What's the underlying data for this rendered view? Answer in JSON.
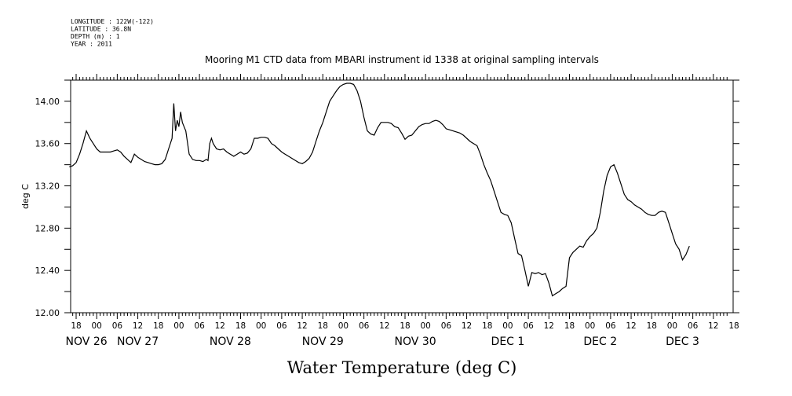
{
  "header": {
    "meta_lines": [
      "LONGITUDE : 122W(-122)",
      "LATITUDE : 36.8N",
      "DEPTH (m) : 1",
      "YEAR : 2011"
    ]
  },
  "chart_data": {
    "type": "line",
    "title": "Mooring M1 CTD data from MBARI instrument id 1338 at original sampling intervals",
    "xlabel": "Water Temperature (deg C)",
    "ylabel": "deg C",
    "ylim": [
      12.0,
      14.2
    ],
    "yticks": [
      12.0,
      12.4,
      12.8,
      13.2,
      13.6,
      14.0
    ],
    "ytick_labels": [
      "12.00",
      "12.40",
      "12.80",
      "13.20",
      "13.60",
      "14.00"
    ],
    "x_unit": "hours since 2011-11-25 16:00",
    "xlim": [
      0,
      192
    ],
    "hour_ticks": [
      {
        "t": 2,
        "label": "18"
      },
      {
        "t": 8,
        "label": "00"
      },
      {
        "t": 14,
        "label": "06"
      },
      {
        "t": 20,
        "label": "12"
      },
      {
        "t": 26,
        "label": "18"
      },
      {
        "t": 32,
        "label": "00"
      },
      {
        "t": 38,
        "label": "06"
      },
      {
        "t": 44,
        "label": "12"
      },
      {
        "t": 50,
        "label": "18"
      },
      {
        "t": 56,
        "label": "00"
      },
      {
        "t": 62,
        "label": "06"
      },
      {
        "t": 68,
        "label": "12"
      },
      {
        "t": 74,
        "label": "18"
      },
      {
        "t": 80,
        "label": "00"
      },
      {
        "t": 86,
        "label": "06"
      },
      {
        "t": 92,
        "label": "12"
      },
      {
        "t": 98,
        "label": "18"
      },
      {
        "t": 104,
        "label": "00"
      },
      {
        "t": 110,
        "label": "06"
      },
      {
        "t": 116,
        "label": "12"
      },
      {
        "t": 122,
        "label": "18"
      },
      {
        "t": 128,
        "label": "00"
      },
      {
        "t": 134,
        "label": "06"
      },
      {
        "t": 140,
        "label": "12"
      },
      {
        "t": 146,
        "label": "18"
      },
      {
        "t": 152,
        "label": "00"
      },
      {
        "t": 158,
        "label": "06"
      },
      {
        "t": 164,
        "label": "12"
      },
      {
        "t": 170,
        "label": "18"
      },
      {
        "t": 176,
        "label": "00"
      },
      {
        "t": 182,
        "label": "06"
      },
      {
        "t": 188,
        "label": "12"
      },
      {
        "t": 194,
        "label": "18"
      }
    ],
    "day_labels": [
      {
        "t": 5,
        "label": "NOV 26"
      },
      {
        "t": 20,
        "label": "NOV 27"
      },
      {
        "t": 47,
        "label": "NOV 28"
      },
      {
        "t": 74,
        "label": "NOV 29"
      },
      {
        "t": 101,
        "label": "NOV 30"
      },
      {
        "t": 128,
        "label": "DEC  1"
      },
      {
        "t": 155,
        "label": "DEC  2"
      },
      {
        "t": 179,
        "label": "DEC  3"
      }
    ],
    "series": [
      {
        "points": [
          [
            0,
            13.38
          ],
          [
            1,
            13.39
          ],
          [
            2,
            13.42
          ],
          [
            3,
            13.5
          ],
          [
            4,
            13.6
          ],
          [
            5,
            13.72
          ],
          [
            6,
            13.65
          ],
          [
            7,
            13.6
          ],
          [
            8,
            13.55
          ],
          [
            9,
            13.52
          ],
          [
            10,
            13.52
          ],
          [
            11,
            13.52
          ],
          [
            12,
            13.52
          ],
          [
            13,
            13.53
          ],
          [
            14,
            13.54
          ],
          [
            15,
            13.52
          ],
          [
            16,
            13.48
          ],
          [
            17,
            13.45
          ],
          [
            18,
            13.42
          ],
          [
            19,
            13.5
          ],
          [
            20,
            13.47
          ],
          [
            21,
            13.45
          ],
          [
            22,
            13.43
          ],
          [
            23,
            13.42
          ],
          [
            24,
            13.41
          ],
          [
            25,
            13.4
          ],
          [
            26,
            13.4
          ],
          [
            27,
            13.41
          ],
          [
            28,
            13.45
          ],
          [
            29,
            13.55
          ],
          [
            30,
            13.65
          ],
          [
            30.5,
            13.98
          ],
          [
            31,
            13.72
          ],
          [
            31.5,
            13.82
          ],
          [
            32,
            13.76
          ],
          [
            32.5,
            13.9
          ],
          [
            33,
            13.8
          ],
          [
            34,
            13.72
          ],
          [
            35,
            13.5
          ],
          [
            36,
            13.45
          ],
          [
            37,
            13.44
          ],
          [
            38,
            13.44
          ],
          [
            39,
            13.43
          ],
          [
            40,
            13.45
          ],
          [
            40.5,
            13.44
          ],
          [
            41,
            13.6
          ],
          [
            41.5,
            13.65
          ],
          [
            42,
            13.6
          ],
          [
            43,
            13.55
          ],
          [
            44,
            13.54
          ],
          [
            45,
            13.55
          ],
          [
            46,
            13.52
          ],
          [
            47,
            13.5
          ],
          [
            48,
            13.48
          ],
          [
            49,
            13.5
          ],
          [
            50,
            13.52
          ],
          [
            51,
            13.5
          ],
          [
            52,
            13.51
          ],
          [
            53,
            13.55
          ],
          [
            54,
            13.65
          ],
          [
            55,
            13.65
          ],
          [
            56,
            13.66
          ],
          [
            57,
            13.66
          ],
          [
            58,
            13.65
          ],
          [
            59,
            13.6
          ],
          [
            60,
            13.58
          ],
          [
            61,
            13.55
          ],
          [
            62,
            13.52
          ],
          [
            63,
            13.5
          ],
          [
            64,
            13.48
          ],
          [
            65,
            13.46
          ],
          [
            66,
            13.44
          ],
          [
            67,
            13.42
          ],
          [
            68,
            13.41
          ],
          [
            69,
            13.43
          ],
          [
            70,
            13.46
          ],
          [
            71,
            13.52
          ],
          [
            72,
            13.62
          ],
          [
            73,
            13.72
          ],
          [
            74,
            13.8
          ],
          [
            75,
            13.9
          ],
          [
            76,
            14.0
          ],
          [
            77,
            14.05
          ],
          [
            78,
            14.1
          ],
          [
            79,
            14.14
          ],
          [
            80,
            14.16
          ],
          [
            81,
            14.17
          ],
          [
            82,
            14.17
          ],
          [
            83,
            14.16
          ],
          [
            84,
            14.1
          ],
          [
            85,
            14.0
          ],
          [
            86,
            13.85
          ],
          [
            87,
            13.72
          ],
          [
            88,
            13.69
          ],
          [
            89,
            13.68
          ],
          [
            90,
            13.75
          ],
          [
            91,
            13.8
          ],
          [
            92,
            13.8
          ],
          [
            93,
            13.8
          ],
          [
            94,
            13.79
          ],
          [
            95,
            13.76
          ],
          [
            96,
            13.75
          ],
          [
            97,
            13.7
          ],
          [
            98,
            13.64
          ],
          [
            99,
            13.67
          ],
          [
            100,
            13.68
          ],
          [
            101,
            13.72
          ],
          [
            102,
            13.76
          ],
          [
            103,
            13.78
          ],
          [
            104,
            13.79
          ],
          [
            105,
            13.79
          ],
          [
            106,
            13.81
          ],
          [
            107,
            13.82
          ],
          [
            108,
            13.81
          ],
          [
            109,
            13.78
          ],
          [
            110,
            13.74
          ],
          [
            111,
            13.73
          ],
          [
            112,
            13.72
          ],
          [
            113,
            13.71
          ],
          [
            114,
            13.7
          ],
          [
            115,
            13.68
          ],
          [
            116,
            13.65
          ],
          [
            117,
            13.62
          ],
          [
            118,
            13.6
          ],
          [
            119,
            13.58
          ],
          [
            120,
            13.5
          ],
          [
            121,
            13.4
          ],
          [
            122,
            13.32
          ],
          [
            123,
            13.25
          ],
          [
            124,
            13.15
          ],
          [
            125,
            13.05
          ],
          [
            126,
            12.95
          ],
          [
            127,
            12.93
          ],
          [
            128,
            12.92
          ],
          [
            129,
            12.85
          ],
          [
            130,
            12.7
          ],
          [
            131,
            12.56
          ],
          [
            132,
            12.54
          ],
          [
            133,
            12.4
          ],
          [
            134,
            12.25
          ],
          [
            135,
            12.38
          ],
          [
            136,
            12.37
          ],
          [
            137,
            12.38
          ],
          [
            138,
            12.36
          ],
          [
            139,
            12.37
          ],
          [
            140,
            12.28
          ],
          [
            141,
            12.16
          ],
          [
            142,
            12.18
          ],
          [
            143,
            12.2
          ],
          [
            144,
            12.23
          ],
          [
            145,
            12.25
          ],
          [
            146,
            12.52
          ],
          [
            147,
            12.57
          ],
          [
            148,
            12.6
          ],
          [
            149,
            12.63
          ],
          [
            150,
            12.62
          ],
          [
            151,
            12.68
          ],
          [
            152,
            12.72
          ],
          [
            153,
            12.75
          ],
          [
            154,
            12.8
          ],
          [
            155,
            12.95
          ],
          [
            156,
            13.15
          ],
          [
            157,
            13.3
          ],
          [
            158,
            13.38
          ],
          [
            159,
            13.4
          ],
          [
            160,
            13.32
          ],
          [
            161,
            13.22
          ],
          [
            162,
            13.12
          ],
          [
            163,
            13.07
          ],
          [
            164,
            13.05
          ],
          [
            165,
            13.02
          ],
          [
            166,
            13.0
          ],
          [
            167,
            12.98
          ],
          [
            168,
            12.95
          ],
          [
            169,
            12.93
          ],
          [
            170,
            12.92
          ],
          [
            171,
            12.92
          ],
          [
            172,
            12.95
          ],
          [
            173,
            12.96
          ],
          [
            174,
            12.95
          ],
          [
            175,
            12.85
          ],
          [
            176,
            12.75
          ],
          [
            177,
            12.65
          ],
          [
            178,
            12.6
          ],
          [
            179,
            12.5
          ],
          [
            180,
            12.55
          ],
          [
            181,
            12.63
          ]
        ]
      }
    ]
  }
}
